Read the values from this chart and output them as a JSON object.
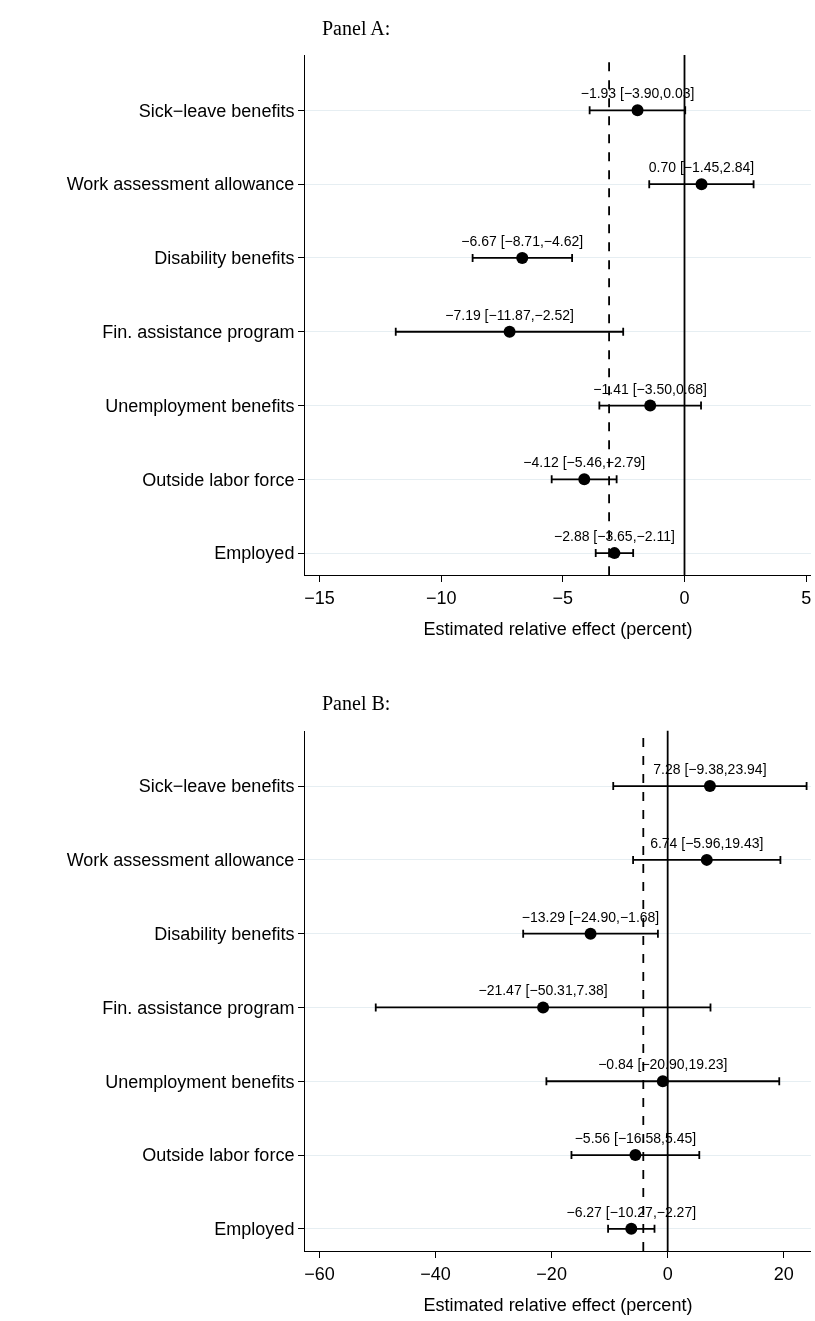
{
  "chart_data": [
    {
      "type": "scatter",
      "title": "Panel A:",
      "orientation": "horizontal",
      "xlabel": "Estimated relative effect (percent)",
      "categories": [
        "Sick−leave benefits",
        "Work assessment allowance",
        "Disability benefits",
        "Fin. assistance program",
        "Unemployment benefits",
        "Outside labor force",
        "Employed"
      ],
      "series": [
        {
          "color": "#000000",
          "values": [
            -1.93,
            0.7,
            -6.67,
            -7.19,
            -1.41,
            -4.12,
            -2.88
          ],
          "errors": [
            [
              -3.9,
              0.03
            ],
            [
              -1.45,
              2.84
            ],
            [
              -8.71,
              -4.62
            ],
            [
              -11.87,
              -2.52
            ],
            [
              -3.5,
              0.68
            ],
            [
              -5.46,
              -2.79
            ],
            [
              -3.65,
              -2.11
            ]
          ],
          "value_labels": [
            "−1.93 [−3.90,0.03]",
            "0.70 [−1.45,2.84]",
            "−6.67 [−8.71,−4.62]",
            "−7.19 [−11.87,−2.52]",
            "−1.41 [−3.50,0.68]",
            "−4.12 [−5.46,−2.79]",
            "−2.88 [−3.65,−2.11]"
          ]
        }
      ],
      "xlim": [
        -15.6,
        5.2
      ],
      "xticks": [
        -15,
        -10,
        -5,
        0,
        5
      ],
      "marker": "circle",
      "grid": "y",
      "ref_lines": [
        {
          "axis": "x",
          "value": 0,
          "color": "#000000",
          "line_style": "solid"
        },
        {
          "axis": "x",
          "value": -3.1,
          "color": "#000000",
          "line_style": "dashed"
        }
      ]
    },
    {
      "type": "scatter",
      "title": "Panel B:",
      "orientation": "horizontal",
      "xlabel": "Estimated relative effect (percent)",
      "categories": [
        "Sick−leave benefits",
        "Work assessment allowance",
        "Disability benefits",
        "Fin. assistance program",
        "Unemployment benefits",
        "Outside labor force",
        "Employed"
      ],
      "series": [
        {
          "color": "#000000",
          "values": [
            7.28,
            6.74,
            -13.29,
            -21.47,
            -0.84,
            -5.56,
            -6.27
          ],
          "errors": [
            [
              -9.38,
              23.94
            ],
            [
              -5.96,
              19.43
            ],
            [
              -24.9,
              -1.68
            ],
            [
              -50.31,
              7.38
            ],
            [
              -20.9,
              19.23
            ],
            [
              -16.58,
              5.45
            ],
            [
              -10.27,
              -2.27
            ]
          ],
          "value_labels": [
            "7.28 [−9.38,23.94]",
            "6.74 [−5.96,19.43]",
            "−13.29 [−24.90,−1.68]",
            "−21.47 [−50.31,7.38]",
            "−0.84 [−20.90,19.23]",
            "−5.56 [−16.58,5.45]",
            "−6.27 [−10.27,−2.27]"
          ]
        }
      ],
      "xlim": [
        -62.5,
        24.7
      ],
      "xticks": [
        -60,
        -40,
        -20,
        0,
        20
      ],
      "marker": "circle",
      "grid": "y",
      "ref_lines": [
        {
          "axis": "x",
          "value": 0,
          "color": "#000000",
          "line_style": "solid"
        },
        {
          "axis": "x",
          "value": -4.2,
          "color": "#000000",
          "line_style": "dashed"
        }
      ]
    }
  ]
}
